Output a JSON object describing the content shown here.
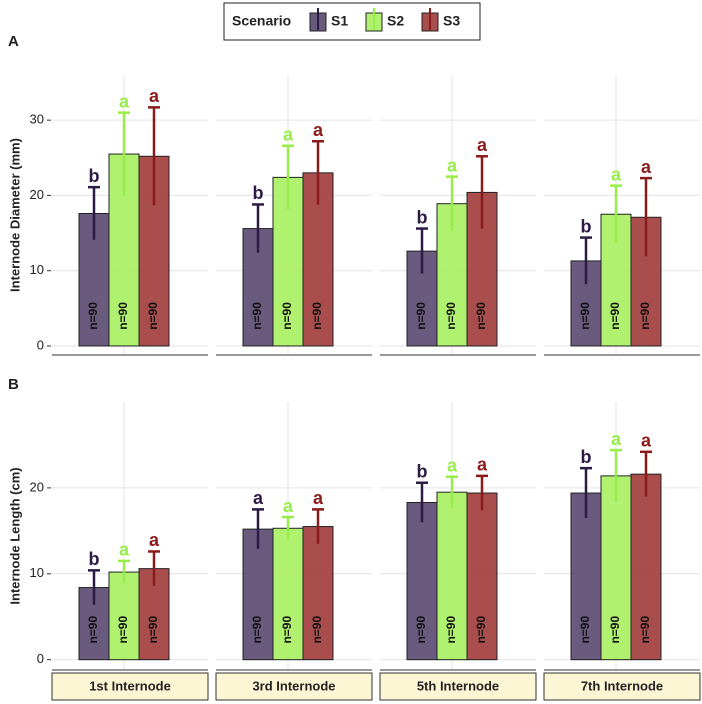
{
  "chart_data": {
    "type": "bar",
    "legend_title": "Scenario",
    "grid": true,
    "categories": [
      "1st Internode",
      "3rd Internode",
      "5th Internode",
      "7th Internode"
    ],
    "series": [
      {
        "name": "S1",
        "color": "#5a4870",
        "error_color": "#2d1a45"
      },
      {
        "name": "S2",
        "color": "#a8f060",
        "error_color": "#98ee48"
      },
      {
        "name": "S3",
        "color": "#a03a3a",
        "error_color": "#8b1a1a"
      }
    ],
    "panels": [
      {
        "label": "A",
        "y_label": "Internode Diameter (mm)",
        "ylim": [
          -1.2,
          36
        ],
        "yticks": [
          0,
          10,
          20,
          30
        ],
        "series": [
          {
            "values": [
              17.6,
              15.6,
              12.6,
              11.3
            ],
            "errors": [
              3.5,
              3.2,
              3.0,
              3.1
            ],
            "letters": [
              "b",
              "b",
              "b",
              "b"
            ],
            "n_labels": [
              "n=90",
              "n=90",
              "n=90",
              "n=90"
            ]
          },
          {
            "values": [
              25.5,
              22.4,
              18.9,
              17.5
            ],
            "errors": [
              5.5,
              4.2,
              3.6,
              3.8
            ],
            "letters": [
              "a",
              "a",
              "a",
              "a"
            ],
            "n_labels": [
              "n=90",
              "n=90",
              "n=90",
              "n=90"
            ]
          },
          {
            "values": [
              25.2,
              23.0,
              20.4,
              17.1
            ],
            "errors": [
              6.5,
              4.2,
              4.8,
              5.2
            ],
            "letters": [
              "a",
              "a",
              "a",
              "a"
            ],
            "n_labels": [
              "n=90",
              "n=90",
              "n=90",
              "n=90"
            ]
          }
        ]
      },
      {
        "label": "B",
        "y_label": "Internode Length (cm)",
        "ylim": [
          -1.2,
          30
        ],
        "yticks": [
          0,
          10,
          20
        ],
        "series": [
          {
            "values": [
              8.4,
              15.2,
              18.3,
              19.4
            ],
            "errors": [
              2.0,
              2.3,
              2.3,
              2.9
            ],
            "letters": [
              "b",
              "a",
              "b",
              "b"
            ],
            "n_labels": [
              "n=90",
              "n=90",
              "n=90",
              "n=90"
            ]
          },
          {
            "values": [
              10.2,
              15.3,
              19.5,
              21.4
            ],
            "errors": [
              1.3,
              1.3,
              1.8,
              3.0
            ],
            "letters": [
              "a",
              "a",
              "a",
              "a"
            ],
            "n_labels": [
              "n=90",
              "n=90",
              "n=90",
              "n=90"
            ]
          },
          {
            "values": [
              10.6,
              15.5,
              19.4,
              21.6
            ],
            "errors": [
              2.0,
              2.0,
              2.0,
              2.6
            ],
            "letters": [
              "a",
              "a",
              "a",
              "a"
            ],
            "n_labels": [
              "n=90",
              "n=90",
              "n=90",
              "n=90"
            ]
          }
        ]
      }
    ]
  }
}
